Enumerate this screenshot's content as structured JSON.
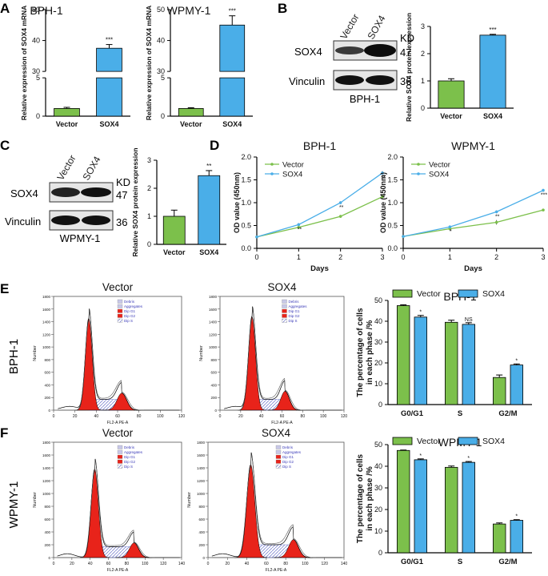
{
  "colors": {
    "green": "#7cc04b",
    "blue": "#4aaee8",
    "red": "#e8231a",
    "hatch": "#6a72c8",
    "axis": "#000000",
    "text": "#111111"
  },
  "panel_letters": [
    "A",
    "B",
    "C",
    "D",
    "E",
    "F"
  ],
  "bar_labels": {
    "vector": "Vector",
    "sox4": "SOX4"
  },
  "blot_text": {
    "b": {
      "lanes": [
        "Vector",
        "SOX4"
      ],
      "rows": [
        "SOX4",
        "Vinculin"
      ],
      "kd_label": "KD",
      "kd": [
        "47",
        "36"
      ],
      "cell": "BPH-1"
    },
    "c": {
      "lanes": [
        "Vector",
        "SOX4"
      ],
      "rows": [
        "SOX4",
        "Vinculin"
      ],
      "kd_label": "KD",
      "kd": [
        "47",
        "36"
      ],
      "cell": "WPMY-1"
    }
  },
  "flow": {
    "row_labels": [
      "BPH-1",
      "WPMY-1"
    ],
    "titles": [
      "Vector",
      "SOX4"
    ],
    "y_label": "Number",
    "x_label": "FL2-A PE-A",
    "legend": [
      "Debris",
      "Aggregates",
      "Dip G1",
      "Dip G2",
      "Dip S"
    ],
    "ticks_e": [
      "0",
      "20",
      "40",
      "60",
      "80",
      "100",
      "120"
    ],
    "ticks_f": [
      "0",
      "20",
      "40",
      "60",
      "80",
      "100",
      "120",
      "140"
    ],
    "yticks": [
      "0",
      "200",
      "400",
      "600",
      "800",
      "1000",
      "1200",
      "1400",
      "1600",
      "1800"
    ]
  },
  "chart_data": [
    {
      "id": "A1",
      "type": "bar",
      "title": "BPH-1",
      "ylabel": "Relative expression of SOX4  mRNA",
      "categories": [
        "Vector",
        "SOX4"
      ],
      "values": [
        1,
        37.5
      ],
      "errors": [
        0.15,
        1.2
      ],
      "ylim": [
        0,
        50
      ],
      "axis_break": [
        5,
        30
      ],
      "yticks": [
        0,
        5,
        30,
        40,
        50
      ],
      "significance": [
        "",
        "***"
      ]
    },
    {
      "id": "A2",
      "type": "bar",
      "title": "WPMY-1",
      "ylabel": "Relative expression of SOX4  mRNA",
      "categories": [
        "Vector",
        "SOX4"
      ],
      "values": [
        1,
        45
      ],
      "errors": [
        0.1,
        3
      ],
      "ylim": [
        0,
        50
      ],
      "axis_break": [
        5,
        30
      ],
      "yticks": [
        0,
        5,
        30,
        40,
        50
      ],
      "significance": [
        "",
        "***"
      ]
    },
    {
      "id": "B",
      "type": "bar",
      "title": "",
      "ylabel": "Relative SOX4 protein expression",
      "categories": [
        "Vector",
        "SOX4"
      ],
      "values": [
        1,
        2.68
      ],
      "errors": [
        0.08,
        0.03
      ],
      "ylim": [
        0,
        3
      ],
      "yticks": [
        0,
        1,
        2,
        3
      ],
      "significance": [
        "",
        "***"
      ]
    },
    {
      "id": "C",
      "type": "bar",
      "title": "",
      "ylabel": "Relative SOX4 protein expression",
      "categories": [
        "Vector",
        "SOX4"
      ],
      "values": [
        1,
        2.45
      ],
      "errors": [
        0.22,
        0.18
      ],
      "ylim": [
        0,
        3
      ],
      "yticks": [
        0,
        1,
        2,
        3
      ],
      "significance": [
        "",
        "**"
      ]
    },
    {
      "id": "D1",
      "type": "line",
      "title": "BPH-1",
      "xlabel": "Days",
      "ylabel": "OD value (450nm)",
      "x": [
        0,
        1,
        2,
        3
      ],
      "xlim": [
        0,
        3
      ],
      "ylim": [
        0,
        2.0
      ],
      "yticks": [
        0,
        0.5,
        1.0,
        1.5,
        2.0
      ],
      "legend": "top-left",
      "series": [
        {
          "name": "Vector",
          "values": [
            0.25,
            0.46,
            0.7,
            1.13
          ],
          "errors": [
            0,
            0.03,
            0.03,
            0.04
          ]
        },
        {
          "name": "SOX4",
          "values": [
            0.25,
            0.52,
            1.0,
            1.65
          ],
          "errors": [
            0,
            0.03,
            0.03,
            0.04
          ]
        }
      ],
      "significance": [
        "",
        "**",
        "**",
        "**"
      ]
    },
    {
      "id": "D2",
      "type": "line",
      "title": "WPMY-1",
      "xlabel": "Days",
      "ylabel": "OD value (450nm)",
      "x": [
        0,
        1,
        2,
        3
      ],
      "xlim": [
        0,
        3
      ],
      "ylim": [
        0,
        2.0
      ],
      "yticks": [
        0,
        0.5,
        1.0,
        1.5,
        2.0
      ],
      "legend": "top-left",
      "series": [
        {
          "name": "Vector",
          "values": [
            0.26,
            0.43,
            0.57,
            0.84
          ],
          "errors": [
            0,
            0.04,
            0.05,
            0.02
          ]
        },
        {
          "name": "SOX4",
          "values": [
            0.26,
            0.47,
            0.8,
            1.27
          ],
          "errors": [
            0,
            0.02,
            0.03,
            0.03
          ]
        }
      ],
      "significance": [
        "",
        "*",
        "**",
        "***"
      ]
    },
    {
      "id": "E",
      "type": "bar",
      "title": "BPH-1",
      "ylabel": "The percentage of cells in each phase /%",
      "categories": [
        "G0/G1",
        "S",
        "G2/M"
      ],
      "ylim": [
        0,
        50
      ],
      "yticks": [
        0,
        10,
        20,
        30,
        40,
        50
      ],
      "legend": "top",
      "series": [
        {
          "name": "Vector",
          "values": [
            47.5,
            39.5,
            13
          ],
          "errors": [
            0.4,
            1,
            1.2
          ]
        },
        {
          "name": "SOX4",
          "values": [
            42,
            38.5,
            19
          ],
          "errors": [
            0.8,
            0.8,
            0.5
          ]
        }
      ],
      "significance": [
        "*",
        "NS",
        "*"
      ]
    },
    {
      "id": "F",
      "type": "bar",
      "title": "WPMY-1",
      "ylabel": "The percentage of cells in each phase /%",
      "categories": [
        "G0/G1",
        "S",
        "G2/M"
      ],
      "ylim": [
        0,
        50
      ],
      "yticks": [
        0,
        10,
        20,
        30,
        40,
        50
      ],
      "legend": "top",
      "series": [
        {
          "name": "Vector",
          "values": [
            47.3,
            39.5,
            13.3
          ],
          "errors": [
            0.2,
            0.6,
            0.5
          ]
        },
        {
          "name": "SOX4",
          "values": [
            43,
            41.8,
            15
          ],
          "errors": [
            0.4,
            0.4,
            0.3
          ]
        }
      ],
      "significance": [
        "*",
        "*",
        "*"
      ]
    }
  ]
}
